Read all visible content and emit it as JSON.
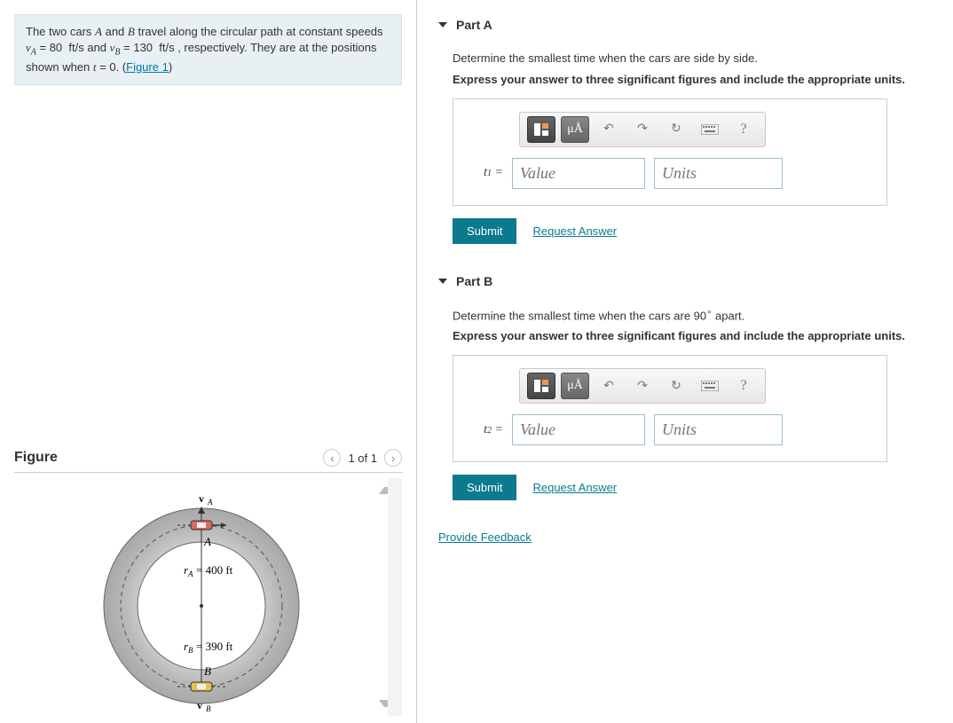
{
  "problem": {
    "html": "The two cars <span class='ital'>A</span> and <span class='ital'>B</span> travel along the circular path at constant speeds <span class='ital'>v<span class='sub'>A</span></span> = 80&nbsp;&nbsp;ft/s and <span class='ital'>v<span class='sub'>B</span></span> = 130&nbsp;&nbsp;ft/s , respectively. They are at the positions shown when <span class='ital'>t</span> = 0. (<span class='fig-link' data-name='figure-link' data-interactable='true'>Figure 1</span>)"
  },
  "figure": {
    "title": "Figure",
    "nav_text": "1 of 1",
    "labels": {
      "vA": "v",
      "vA_sub": "A",
      "A": "A",
      "rA_lhs": "r",
      "rA_sub": "A",
      "rA_rhs": " = 400 ft",
      "rB_lhs": "r",
      "rB_sub": "B",
      "rB_rhs": " = 390 ft",
      "B": "B",
      "vB": "v",
      "vB_sub": "B"
    },
    "geometry": {
      "outer_r": 110,
      "inner_r": 72,
      "mid_r": 91
    }
  },
  "parts": [
    {
      "key": "A",
      "title": "Part A",
      "ask_html": "Determine the smallest time when the cars are side by side.",
      "instr": "Express your answer to three significant figures and include the appropriate units.",
      "var_html": "<span class='ital'>t</span><span class='sb'>1</span> =",
      "value_ph": "Value",
      "units_ph": "Units",
      "submit": "Submit",
      "request": "Request Answer"
    },
    {
      "key": "B",
      "title": "Part B",
      "ask_html": "Determine the smallest time when the cars are 90<span class='deg'>∘</span> apart.",
      "instr": "Express your answer to three significant figures and include the appropriate units.",
      "var_html": "<span class='ital'>t</span><span class='sb'>2</span> =",
      "value_ph": "Value",
      "units_ph": "Units",
      "submit": "Submit",
      "request": "Request Answer"
    }
  ],
  "feedback": "Provide Feedback",
  "toolbar": {
    "mu_a": "μÅ",
    "help": "?"
  }
}
